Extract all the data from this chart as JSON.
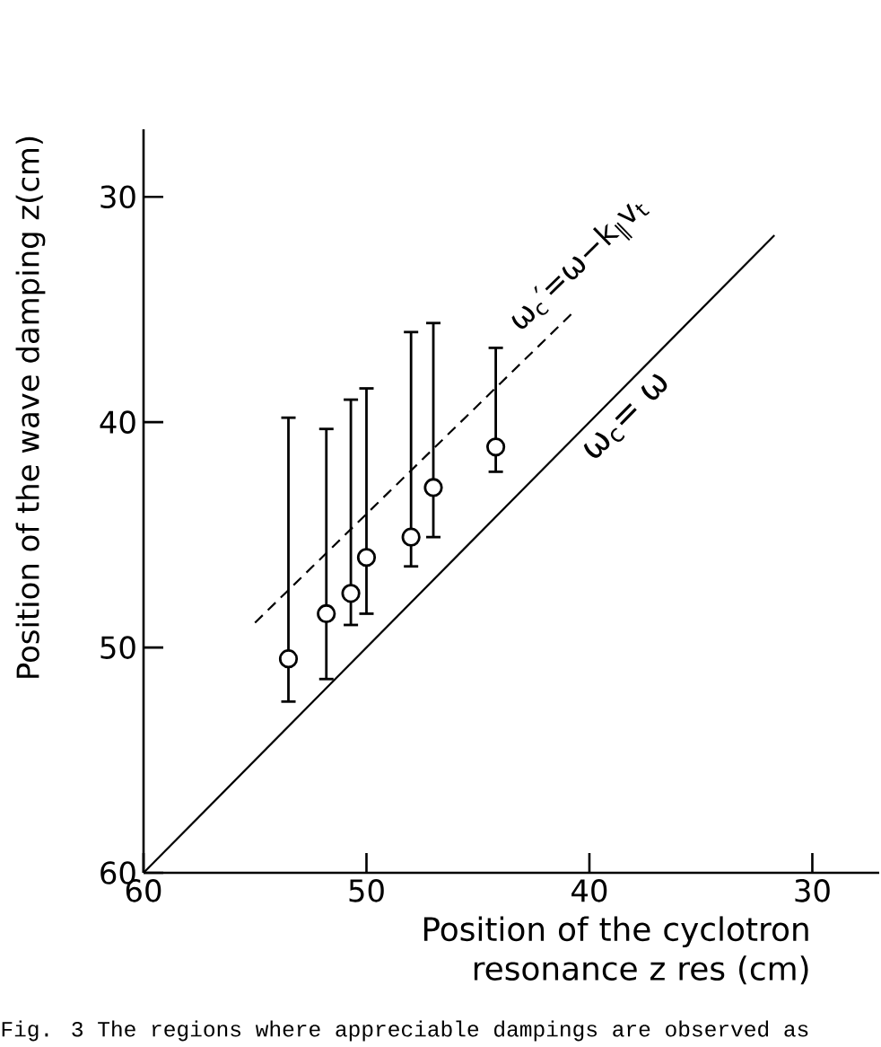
{
  "chart_data": {
    "type": "scatter",
    "xlabel": "Position of the cyclotron resonance z res (cm)",
    "ylabel": "Position of the wave damping  z(cm)",
    "annotations": [
      "Fig. 3  The regions where appreciable dampings are observed as"
    ],
    "xlim": [
      60,
      27
    ],
    "ylim": [
      60,
      27
    ],
    "xticks": [
      60,
      50,
      40,
      30
    ],
    "yticks": [
      30,
      40,
      50,
      60
    ],
    "grid": false,
    "series": [
      {
        "type": "scatter",
        "color": "#000000",
        "marker": "circle",
        "x": [
          53.5,
          51.8,
          50.7,
          50.0,
          48.0,
          47.0,
          44.2
        ],
        "values": [
          50.5,
          48.5,
          47.6,
          46.0,
          45.1,
          42.9,
          41.1
        ],
        "errors": [
          [
            39.8,
            52.4
          ],
          [
            40.3,
            51.4
          ],
          [
            39.0,
            49.0
          ],
          [
            38.5,
            48.5
          ],
          [
            36.0,
            46.4
          ],
          [
            35.6,
            45.1
          ],
          [
            36.7,
            42.2
          ]
        ]
      },
      {
        "type": "line",
        "name": "ω$_{c}$= ω",
        "color": "#000000",
        "line_style": "solid",
        "marker": "none",
        "x": [
          60,
          31.7
        ],
        "values": [
          60,
          31.7
        ]
      },
      {
        "type": "line",
        "name": "ω$_{c}$′=ω−k$_{∥}$v$_{t}$",
        "color": "#000000",
        "line_style": "dashed",
        "marker": "none",
        "x": [
          55.0,
          40.6
        ],
        "values": [
          48.9,
          35.0
        ]
      }
    ]
  }
}
